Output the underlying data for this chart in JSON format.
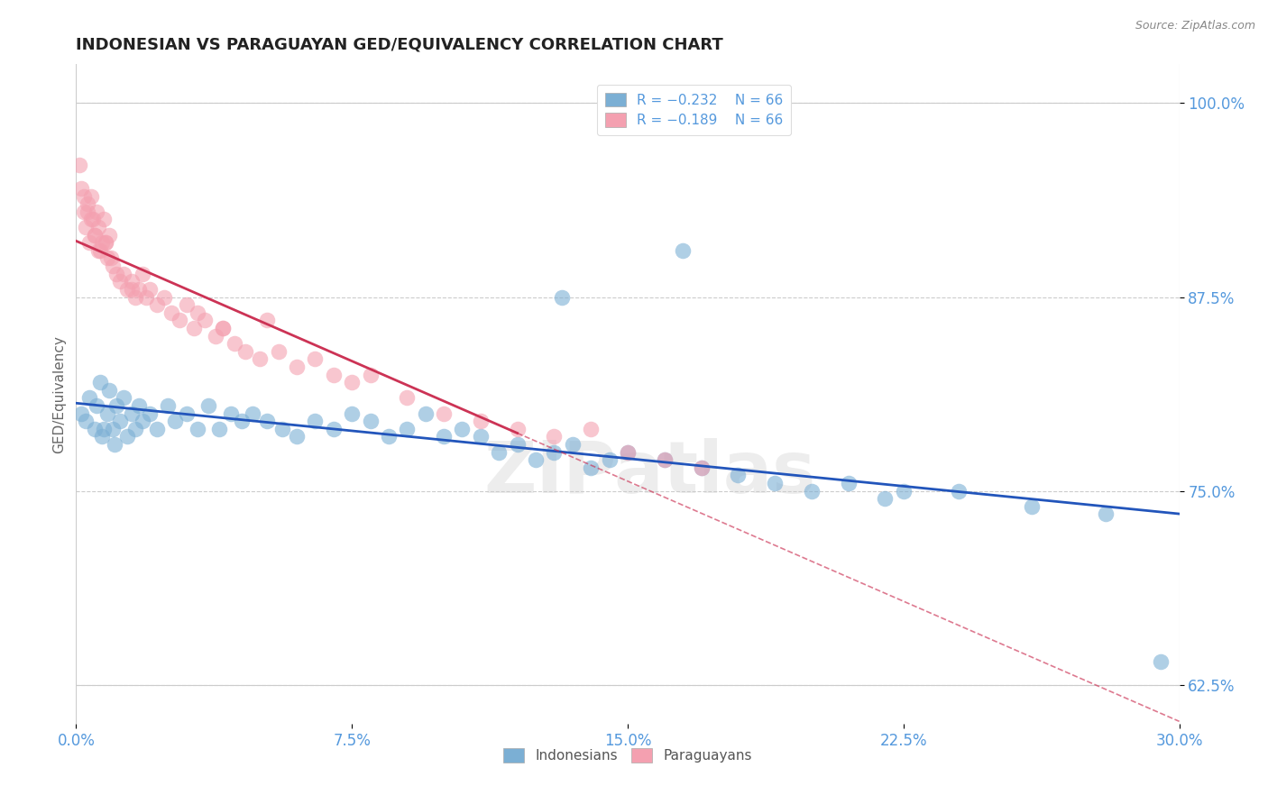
{
  "title": "INDONESIAN VS PARAGUAYAN GED/EQUIVALENCY CORRELATION CHART",
  "source": "Source: ZipAtlas.com",
  "ylabel": "GED/Equivalency",
  "xlim": [
    0.0,
    30.0
  ],
  "ylim": [
    60.0,
    102.5
  ],
  "yticks": [
    62.5,
    75.0,
    87.5,
    100.0
  ],
  "xticks": [
    0.0,
    7.5,
    15.0,
    22.5,
    30.0
  ],
  "xtick_labels": [
    "0.0%",
    "7.5%",
    "15.0%",
    "22.5%",
    "30.0%"
  ],
  "ytick_labels": [
    "62.5%",
    "75.0%",
    "87.5%",
    "100.0%"
  ],
  "legend_r_blue": "R = −0.232",
  "legend_n_blue": "N = 66",
  "legend_r_pink": "R = −0.189",
  "legend_n_pink": "N = 66",
  "blue_color": "#7BAFD4",
  "pink_color": "#F4A0B0",
  "blue_line_color": "#2255BB",
  "pink_line_color": "#CC3355",
  "tick_color": "#5599DD",
  "background_color": "#FFFFFF",
  "indonesian_x": [
    0.15,
    0.25,
    0.35,
    0.5,
    0.55,
    0.65,
    0.7,
    0.75,
    0.85,
    0.9,
    1.0,
    1.05,
    1.1,
    1.2,
    1.3,
    1.4,
    1.5,
    1.6,
    1.7,
    1.8,
    2.0,
    2.2,
    2.5,
    2.7,
    3.0,
    3.3,
    3.6,
    3.9,
    4.2,
    4.5,
    4.8,
    5.2,
    5.6,
    6.0,
    6.5,
    7.0,
    7.5,
    8.0,
    8.5,
    9.0,
    9.5,
    10.0,
    10.5,
    11.0,
    11.5,
    12.0,
    12.5,
    13.0,
    13.5,
    14.0,
    14.5,
    15.0,
    16.0,
    17.0,
    18.0,
    19.0,
    20.0,
    21.0,
    22.0,
    22.5,
    24.0,
    26.0,
    28.0,
    29.5,
    16.5,
    13.2
  ],
  "indonesian_y": [
    80.0,
    79.5,
    81.0,
    79.0,
    80.5,
    82.0,
    78.5,
    79.0,
    80.0,
    81.5,
    79.0,
    78.0,
    80.5,
    79.5,
    81.0,
    78.5,
    80.0,
    79.0,
    80.5,
    79.5,
    80.0,
    79.0,
    80.5,
    79.5,
    80.0,
    79.0,
    80.5,
    79.0,
    80.0,
    79.5,
    80.0,
    79.5,
    79.0,
    78.5,
    79.5,
    79.0,
    80.0,
    79.5,
    78.5,
    79.0,
    80.0,
    78.5,
    79.0,
    78.5,
    77.5,
    78.0,
    77.0,
    77.5,
    78.0,
    76.5,
    77.0,
    77.5,
    77.0,
    76.5,
    76.0,
    75.5,
    75.0,
    75.5,
    74.5,
    75.0,
    75.0,
    74.0,
    73.5,
    64.0,
    90.5,
    87.5
  ],
  "paraguayan_x": [
    0.1,
    0.15,
    0.2,
    0.25,
    0.3,
    0.35,
    0.4,
    0.45,
    0.5,
    0.55,
    0.6,
    0.65,
    0.7,
    0.75,
    0.8,
    0.85,
    0.9,
    0.95,
    1.0,
    1.1,
    1.2,
    1.3,
    1.4,
    1.5,
    1.6,
    1.7,
    1.8,
    1.9,
    2.0,
    2.2,
    2.4,
    2.6,
    2.8,
    3.0,
    3.2,
    3.5,
    3.8,
    4.0,
    4.3,
    4.6,
    5.0,
    5.5,
    6.0,
    6.5,
    7.0,
    7.5,
    8.0,
    9.0,
    10.0,
    11.0,
    12.0,
    13.0,
    14.0,
    15.0,
    16.0,
    17.0,
    5.2,
    4.0,
    3.3,
    1.5,
    0.8,
    0.6,
    0.4,
    0.3,
    0.2,
    0.5
  ],
  "paraguayan_y": [
    96.0,
    94.5,
    93.0,
    92.0,
    93.5,
    91.0,
    94.0,
    92.5,
    91.5,
    93.0,
    92.0,
    90.5,
    91.0,
    92.5,
    91.0,
    90.0,
    91.5,
    90.0,
    89.5,
    89.0,
    88.5,
    89.0,
    88.0,
    88.5,
    87.5,
    88.0,
    89.0,
    87.5,
    88.0,
    87.0,
    87.5,
    86.5,
    86.0,
    87.0,
    85.5,
    86.0,
    85.0,
    85.5,
    84.5,
    84.0,
    83.5,
    84.0,
    83.0,
    83.5,
    82.5,
    82.0,
    82.5,
    81.0,
    80.0,
    79.5,
    79.0,
    78.5,
    79.0,
    77.5,
    77.0,
    76.5,
    86.0,
    85.5,
    86.5,
    88.0,
    91.0,
    90.5,
    92.5,
    93.0,
    94.0,
    91.5
  ]
}
